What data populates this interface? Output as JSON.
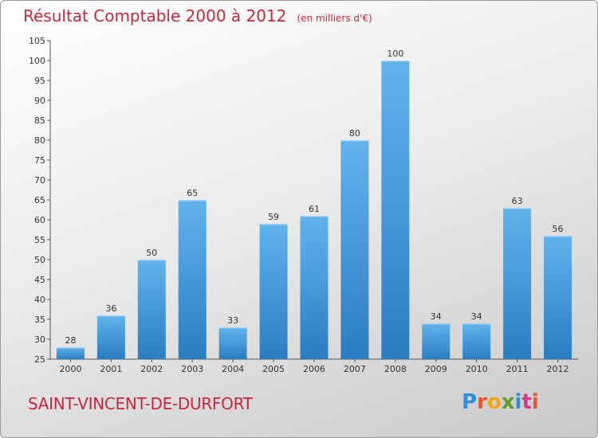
{
  "header": {
    "title": "Résultat Comptable 2000 à 2012",
    "subtitle": "(en milliers d'€)"
  },
  "footer": {
    "place_name": "SAINT-VINCENT-DE-DURFORT",
    "logo_text": "Proxiti",
    "logo_colors": [
      "#2f8fd8",
      "#e2572c",
      "#f0a51c",
      "#5a9e2f",
      "#2f8fd8",
      "#d63b8c",
      "#e2572c"
    ]
  },
  "colors": {
    "accent": "#c8283c",
    "bar_light": "#62b3ec",
    "bar_dark": "#2a7dc2",
    "axis": "#555555",
    "grid": "#c8c8c8"
  },
  "chart_data": {
    "type": "bar",
    "categories": [
      "2000",
      "2001",
      "2002",
      "2003",
      "2004",
      "2005",
      "2006",
      "2007",
      "2008",
      "2009",
      "2010",
      "2011",
      "2012"
    ],
    "values": [
      28,
      36,
      50,
      65,
      33,
      59,
      61,
      80,
      100,
      34,
      34,
      63,
      56
    ],
    "ylim": [
      25,
      105
    ],
    "yticks": [
      25,
      30,
      35,
      40,
      45,
      50,
      55,
      60,
      65,
      70,
      75,
      80,
      85,
      90,
      95,
      100,
      105
    ],
    "grid": false,
    "legend": "none"
  }
}
